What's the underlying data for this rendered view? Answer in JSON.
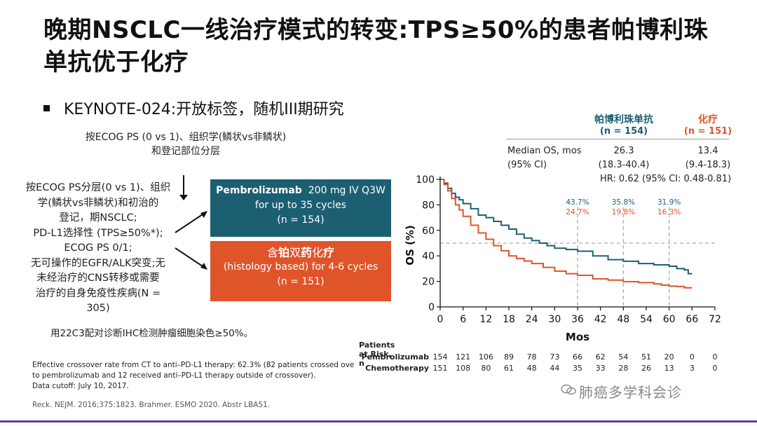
{
  "title": "晚期NSCLC一线治疗模式的转变:TPS≥50%的患者帕博利珠单抗优于化疗",
  "bullet": "KEYNOTE-024:开放标签，随机III期研究",
  "stratification": [
    "按ECOG PS (0 vs 1)、组织学(鳞状vs非鳞状)",
    "和登记部位分层"
  ],
  "criteria": [
    "按ECOG PS分层(0 vs 1)、组织",
    "学(鳞状vs非鳞状)和初治的",
    "登记，期NSCLC;",
    "PD-L1选择性 (TPS≥50%*);",
    "ECOG PS 0/1;",
    "无可操作的EGFR/ALK突变;无",
    "未经治疗的CNS转移或需要",
    "治疗的自身免疫性疾病(N =",
    "305)"
  ],
  "arm1": {
    "name": "Pembrolizumab",
    "dose": "200 mg IV Q3W",
    "line2": "for up to 35 cycles",
    "n": "(n = 154)"
  },
  "arm2": {
    "c1": "含",
    "c2": "铂",
    "c3": "双",
    "c4": "药",
    "c5": "化",
    "c6": "疗",
    "line2": "(histology based) for 4-6 cycles",
    "n": "(n = 151)"
  },
  "ihc_note": "用22C3配对诊断IHC检测肿瘤细胞染色≥50%。",
  "footnotes": [
    "Effective crossover rate from CT to anti–PD-L1 therapy: 62.3% (82 patients crossed over",
    "to pembrolizumab and 12 received anti–PD-L1 therapy outside of crossover).",
    "Data cutoff: July 10, 2017."
  ],
  "reference": "Reck. NEJM. 2016;375:1823.  Brahmer. ESMO 2020. Abstr LBA51.",
  "table": {
    "col1_name": "帕博利珠单抗",
    "col1_n": "(n = 154)",
    "col2_name": "化疗",
    "col2_n": "(n = 151)",
    "row1_label": "Median OS, mos",
    "row2_label": "(95% CI)",
    "col1_median": "26.3",
    "col1_ci": "(18.3-40.4)",
    "col2_median": "13.4",
    "col2_ci": "(9.4-18.3)",
    "hr": "HR: 0.62 (95% CI: 0.48-0.81)"
  },
  "watermark": "肺癌多学科会诊",
  "colors": {
    "pembro": "#1c5f73",
    "chemo": "#e0542a",
    "dashed": "#aaaaaa"
  },
  "chart_data": {
    "type": "line",
    "title": "",
    "xlabel": "Mos",
    "ylabel": "OS (%)",
    "xlim": [
      0,
      72
    ],
    "ylim": [
      0,
      100
    ],
    "x_ticks": [
      0,
      6,
      12,
      18,
      24,
      30,
      36,
      42,
      48,
      54,
      60,
      66,
      72
    ],
    "y_ticks": [
      0,
      20,
      40,
      60,
      80,
      100
    ],
    "reference_line_y": 50,
    "series": [
      {
        "name": "Pembrolizumab",
        "color": "#1c5f73",
        "x": [
          0,
          1,
          2,
          3,
          4,
          5,
          6,
          8,
          10,
          12,
          14,
          16,
          18,
          20,
          22,
          24,
          26,
          28,
          30,
          33,
          36,
          40,
          44,
          48,
          52,
          56,
          58,
          60,
          62,
          64,
          65,
          66
        ],
        "y": [
          100,
          97,
          93,
          89,
          86,
          84,
          81,
          77,
          72,
          70,
          67,
          64,
          61,
          57,
          54,
          52,
          50,
          48,
          46,
          45,
          43.7,
          40,
          37,
          35.8,
          34,
          33,
          33,
          31.9,
          30,
          29,
          26,
          26
        ]
      },
      {
        "name": "Chemotherapy",
        "color": "#e0542a",
        "x": [
          0,
          1,
          2,
          3,
          4,
          5,
          6,
          8,
          10,
          12,
          14,
          16,
          18,
          20,
          22,
          24,
          27,
          30,
          33,
          36,
          40,
          44,
          48,
          52,
          56,
          58,
          60,
          62,
          64,
          66
        ],
        "y": [
          100,
          96,
          91,
          85,
          80,
          76,
          71,
          64,
          58,
          53,
          48,
          44,
          40,
          38,
          36,
          34,
          31,
          28,
          26,
          24.7,
          22,
          21,
          19.8,
          19,
          18,
          17,
          16.3,
          16,
          15,
          15
        ]
      }
    ],
    "annotations": [
      {
        "x": 36,
        "pembro": "43.7%",
        "chemo": "24.7%"
      },
      {
        "x": 48,
        "pembro": "35.8%",
        "chemo": "19.8%"
      },
      {
        "x": 60,
        "pembro": "31.9%",
        "chemo": "16.3%"
      }
    ],
    "at_risk": {
      "header": "Patients at Risk, n",
      "rows": [
        {
          "label": "Pembrolizumab",
          "values": [
            "154",
            "121",
            "106",
            "89",
            "78",
            "73",
            "66",
            "62",
            "54",
            "51",
            "20",
            "0",
            "0"
          ]
        },
        {
          "label": "Chemotherapy",
          "values": [
            "151",
            "108",
            "80",
            "61",
            "48",
            "44",
            "35",
            "33",
            "28",
            "26",
            "13",
            "3",
            "0"
          ]
        }
      ]
    }
  }
}
